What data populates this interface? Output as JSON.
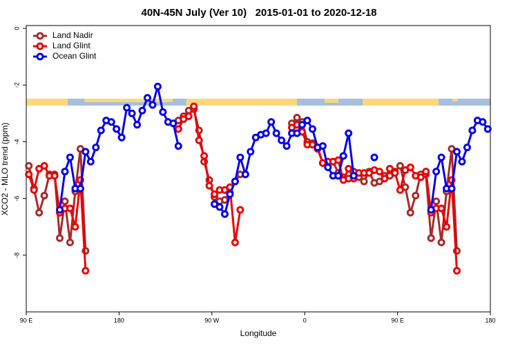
{
  "chart_data": {
    "type": "line",
    "title": "40N-45N July (Ver 10)   2015-01-01 to 2020-12-18",
    "x_label": "Longitude",
    "y_label": "XCO2 - MLO trend (ppm)",
    "xlim": [
      90,
      540
    ],
    "ylim": [
      -10,
      0.1
    ],
    "xticks": [
      {
        "value": 90,
        "label": "90 E"
      },
      180,
      {
        "value": 270,
        "label": "90 W"
      },
      {
        "value": 360,
        "label": "0"
      },
      {
        "value": 450,
        "label": "90 E"
      },
      {
        "value": 540,
        "label": "180"
      }
    ],
    "yticks": [
      0,
      -2,
      -4,
      -6,
      -8
    ],
    "legend": "top-left",
    "series": [
      {
        "name": "Land Nadir",
        "color": "#a52a2a",
        "x": [
          92.5,
          97.5,
          102.5,
          107.5,
          112.5,
          117.5,
          122.5,
          127.5,
          132.5,
          137.5,
          142.5,
          147.5,
          152.5,
          237.5,
          242.5,
          247.5,
          252.5,
          257.5,
          262.5,
          267.5,
          272.5,
          277.5,
          282.5,
          287.5,
          292.5,
          297.5,
          302.5,
          347.5,
          352.5,
          357.5,
          362.5,
          367.5,
          372.5,
          377.5,
          382.5,
          387.5,
          392.5,
          397.5,
          402.5,
          407.5,
          412.5,
          417.5,
          422.5,
          427.5,
          432.5,
          437.5,
          442.5,
          447.5,
          452.5,
          457.5,
          462.5,
          467.5,
          472.5,
          477.5,
          482.5,
          487.5,
          492.5,
          497.5,
          502.5,
          507.5
        ],
        "values": [
          -4.85,
          -5.65,
          -6.5,
          -5.9,
          -5.15,
          -5.15,
          -7.4,
          -6.1,
          -7.55,
          -5.75,
          -4.25,
          -7.85,
          null,
          -3.25,
          -3.1,
          -2.9,
          -2.85,
          -3.6,
          -4.7,
          -5.35,
          -5.95,
          -6.1,
          -6.05,
          -5.8,
          -5.4,
          -5.15,
          null,
          -3.35,
          -3.15,
          -3.3,
          -4.0,
          -4.05,
          -4.2,
          -4.75,
          -4.75,
          -4.7,
          -5.1,
          -5.25,
          -5.3,
          -5.05,
          -5.25,
          -5.4,
          -5.05,
          -5.45,
          -5.4,
          -5.2,
          -5.2,
          -5.05,
          -4.85,
          -5.6,
          -6.5,
          -5.9,
          -5.15,
          -5.15,
          -7.4,
          -6.1,
          -7.55,
          -5.75,
          -4.25,
          -7.85
        ]
      },
      {
        "name": "Land Glint",
        "color": "#ee0000",
        "x": [
          92.5,
          97.5,
          102.5,
          107.5,
          112.5,
          117.5,
          122.5,
          127.5,
          132.5,
          137.5,
          142.5,
          147.5,
          152.5,
          237.5,
          242.5,
          247.5,
          252.5,
          257.5,
          262.5,
          267.5,
          272.5,
          277.5,
          282.5,
          287.5,
          292.5,
          297.5,
          302.5,
          347.5,
          352.5,
          357.5,
          362.5,
          367.5,
          372.5,
          377.5,
          382.5,
          387.5,
          392.5,
          397.5,
          402.5,
          407.5,
          412.5,
          417.5,
          422.5,
          427.5,
          432.5,
          437.5,
          442.5,
          447.5,
          452.5,
          457.5,
          462.5,
          467.5,
          472.5,
          477.5,
          482.5,
          487.5,
          492.5,
          497.5,
          502.5,
          507.5
        ],
        "values": [
          -5.15,
          -5.7,
          -4.95,
          -4.85,
          -5.2,
          -5.2,
          -6.5,
          -6.35,
          -6.35,
          -7.0,
          -5.35,
          -8.55,
          null,
          -3.55,
          -3.2,
          -3.1,
          -2.75,
          -3.95,
          -4.5,
          -5.55,
          -5.85,
          -5.7,
          -5.7,
          -5.6,
          -7.55,
          -6.4,
          null,
          -3.5,
          -3.4,
          -3.65,
          -4.1,
          -4.1,
          -4.25,
          -4.75,
          -4.7,
          -4.7,
          -4.65,
          -5.35,
          -4.95,
          -5.3,
          -5.1,
          -5.1,
          -5.1,
          -5.0,
          -5.05,
          -5.3,
          -4.95,
          -5.1,
          -5.7,
          -5.0,
          -4.9,
          -5.2,
          -5.25,
          -5.05,
          -6.5,
          -6.35,
          -6.35,
          -7.0,
          -5.35,
          -8.55
        ]
      },
      {
        "name": "Ocean Glint",
        "color": "#0000ee",
        "x": [
          122.5,
          127.5,
          132.5,
          137.5,
          142.5,
          147.5,
          152.5,
          157.5,
          162.5,
          167.5,
          172.5,
          177.5,
          182.5,
          187.5,
          192.5,
          197.5,
          202.5,
          207.5,
          212.5,
          217.5,
          222.5,
          227.5,
          232.5,
          237.5,
          242.5,
          272.5,
          277.5,
          282.5,
          287.5,
          292.5,
          297.5,
          302.5,
          307.5,
          312.5,
          317.5,
          322.5,
          327.5,
          332.5,
          337.5,
          342.5,
          347.5,
          352.5,
          357.5,
          362.5,
          367.5,
          372.5,
          377.5,
          382.5,
          387.5,
          392.5,
          397.5,
          402.5,
          407.5,
          412.5,
          427.5,
          432.5,
          482.5,
          487.5,
          492.5,
          497.5,
          502.5,
          507.5,
          512.5,
          517.5,
          522.5,
          527.5,
          532.5,
          537.5
        ],
        "values": [
          -6.4,
          -5.05,
          -4.55,
          -5.65,
          -5.65,
          -4.35,
          -4.7,
          -4.2,
          -3.6,
          -3.25,
          -3.3,
          -3.55,
          -3.85,
          -2.8,
          -3.0,
          -3.4,
          -2.9,
          -2.45,
          -2.7,
          -2.05,
          -2.95,
          -3.3,
          -3.35,
          -4.15,
          null,
          -6.2,
          -6.3,
          -6.55,
          -5.85,
          -5.4,
          -4.55,
          -5.15,
          -4.35,
          -3.85,
          -3.75,
          -3.7,
          -3.3,
          -3.7,
          -3.95,
          -4.15,
          -3.7,
          -3.7,
          -3.4,
          -3.25,
          -3.55,
          -4.2,
          -4.15,
          -4.9,
          -5.2,
          -5.2,
          -4.5,
          -3.7,
          -5.2,
          null,
          -4.55,
          null,
          -6.4,
          -5.05,
          -4.55,
          -5.65,
          -5.65,
          -4.35,
          -4.7,
          -4.2,
          -3.6,
          -3.25,
          -3.3,
          -3.55
        ]
      }
    ]
  }
}
